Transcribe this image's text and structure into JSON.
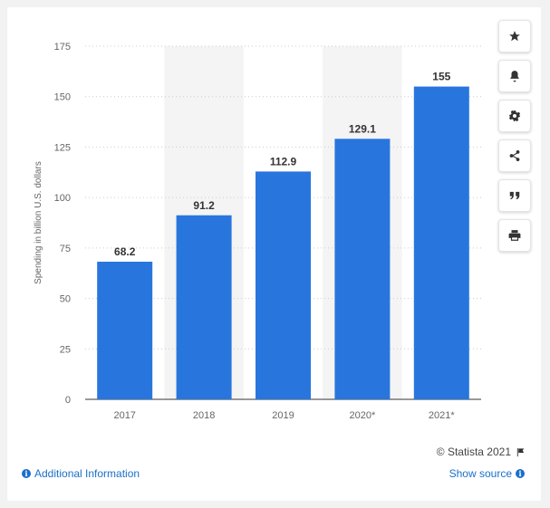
{
  "chart_data": {
    "type": "bar",
    "categories": [
      "2017",
      "2018",
      "2019",
      "2020*",
      "2021*"
    ],
    "values": [
      68.2,
      91.2,
      112.9,
      129.1,
      155
    ],
    "value_labels": [
      "68.2",
      "91.2",
      "112.9",
      "129.1",
      "155"
    ],
    "title": "",
    "xlabel": "",
    "ylabel": "Spending in billion U.S. dollars",
    "ylim": [
      0,
      175
    ],
    "yticks": [
      0,
      25,
      50,
      75,
      100,
      125,
      150,
      175
    ],
    "grid": true,
    "bar_color": "#2876dd",
    "alt_band_color": "#f4f4f4"
  },
  "toolbar": {
    "buttons": [
      {
        "name": "star-icon"
      },
      {
        "name": "bell-icon"
      },
      {
        "name": "gear-icon"
      },
      {
        "name": "share-icon"
      },
      {
        "name": "quote-icon"
      },
      {
        "name": "print-icon"
      }
    ]
  },
  "footer": {
    "copyright": "© Statista 2021",
    "additional_info": "Additional Information",
    "show_source": "Show source"
  }
}
